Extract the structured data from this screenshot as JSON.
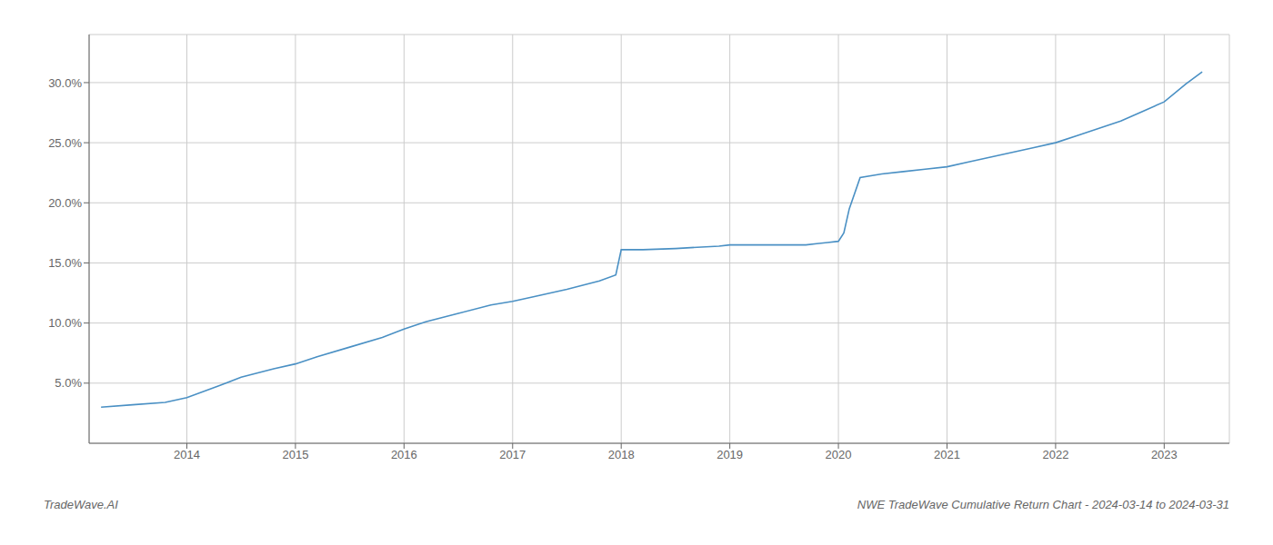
{
  "chart_data": {
    "type": "line",
    "title": "NWE TradeWave Cumulative Return Chart - 2024-03-14 to 2024-03-31",
    "annotations": [
      "TradeWave.AI"
    ],
    "color": "#4a90c4",
    "grid": true,
    "x": [
      2013.21,
      2013.5,
      2013.8,
      2014.0,
      2014.3,
      2014.5,
      2014.8,
      2015.0,
      2015.2,
      2015.5,
      2015.8,
      2016.0,
      2016.2,
      2016.5,
      2016.8,
      2017.0,
      2017.2,
      2017.5,
      2017.8,
      2017.95,
      2018.0,
      2018.05,
      2018.1,
      2018.2,
      2018.5,
      2018.7,
      2018.9,
      2019.0,
      2019.1,
      2019.2,
      2019.3,
      2019.5,
      2019.6,
      2019.7,
      2019.8,
      2019.9,
      2020.0,
      2020.05,
      2020.1,
      2020.2,
      2020.4,
      2020.6,
      2020.8,
      2021.0,
      2021.2,
      2021.4,
      2021.6,
      2021.8,
      2022.0,
      2022.2,
      2022.4,
      2022.6,
      2022.8,
      2023.0,
      2023.2,
      2023.35
    ],
    "values": [
      0.03,
      0.032,
      0.034,
      0.038,
      0.048,
      0.055,
      0.062,
      0.066,
      0.072,
      0.08,
      0.088,
      0.095,
      0.101,
      0.108,
      0.115,
      0.118,
      0.122,
      0.128,
      0.135,
      0.14,
      0.161,
      0.161,
      0.161,
      0.161,
      0.162,
      0.163,
      0.164,
      0.165,
      0.165,
      0.165,
      0.165,
      0.165,
      0.165,
      0.165,
      0.166,
      0.167,
      0.168,
      0.175,
      0.195,
      0.221,
      0.224,
      0.226,
      0.228,
      0.23,
      0.234,
      0.238,
      0.242,
      0.246,
      0.25,
      0.256,
      0.262,
      0.268,
      0.276,
      0.284,
      0.299,
      0.309
    ],
    "xlim": [
      2013.1,
      2023.6
    ],
    "ylim": [
      0.0,
      0.34
    ],
    "xticks": [
      2014,
      2015,
      2016,
      2017,
      2018,
      2019,
      2020,
      2021,
      2022,
      2023
    ],
    "yticks": [
      {
        "value": 0.05,
        "label": "5.0%"
      },
      {
        "value": 0.1,
        "label": "10.0%"
      },
      {
        "value": 0.15,
        "label": "15.0%"
      },
      {
        "value": 0.2,
        "label": "20.0%"
      },
      {
        "value": 0.25,
        "label": "25.0%"
      },
      {
        "value": 0.3,
        "label": "30.0%"
      }
    ]
  }
}
